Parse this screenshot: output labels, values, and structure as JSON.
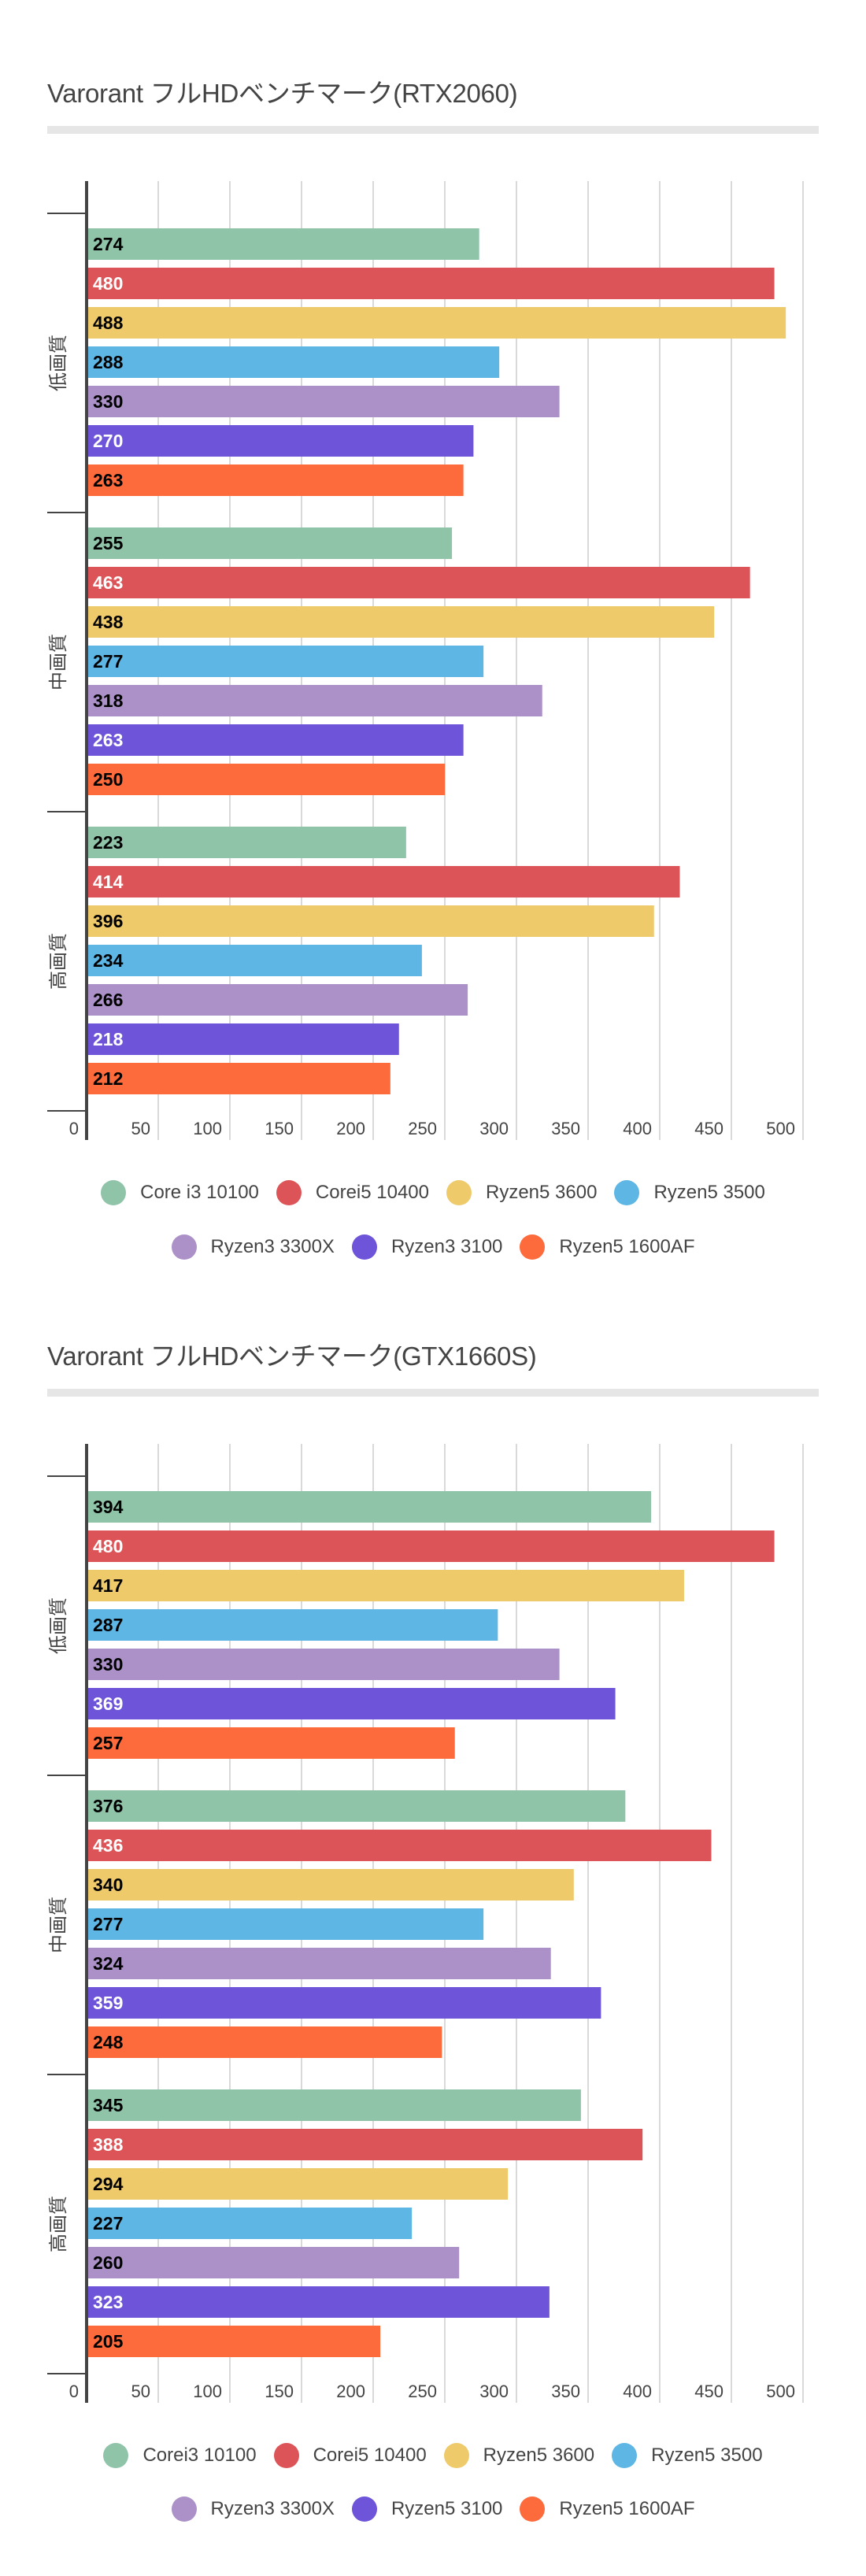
{
  "chart_data": [
    {
      "type": "bar",
      "orientation": "horizontal",
      "title": "Varorant フルHDベンチマーク(RTX2060)",
      "categories": [
        "低画質",
        "中画質",
        "高画質"
      ],
      "xlim": [
        0,
        500
      ],
      "xticks": [
        0,
        50,
        100,
        150,
        200,
        250,
        300,
        350,
        400,
        450,
        500
      ],
      "grid": true,
      "legend_position": "bottom",
      "data_labels": true,
      "series": [
        {
          "name": "Core i3 10100",
          "color": "#8fc4a9",
          "label_color": "#000000",
          "values": [
            274,
            255,
            223
          ]
        },
        {
          "name": "Corei5 10400",
          "color": "#dc5457",
          "label_color": "#ffffff",
          "values": [
            480,
            463,
            414
          ]
        },
        {
          "name": "Ryzen5 3600",
          "color": "#eeca6a",
          "label_color": "#000000",
          "values": [
            488,
            438,
            396
          ]
        },
        {
          "name": "Ryzen5 3500",
          "color": "#5eb6e4",
          "label_color": "#000000",
          "values": [
            288,
            277,
            234
          ]
        },
        {
          "name": "Ryzen3 3300X",
          "color": "#ab91c7",
          "label_color": "#000000",
          "values": [
            330,
            318,
            266
          ]
        },
        {
          "name": "Ryzen3 3100",
          "color": "#6d54d9",
          "label_color": "#ffffff",
          "values": [
            270,
            263,
            218
          ]
        },
        {
          "name": "Ryzen5 1600AF",
          "color": "#fd6a3b",
          "label_color": "#000000",
          "values": [
            263,
            250,
            212
          ]
        }
      ]
    },
    {
      "type": "bar",
      "orientation": "horizontal",
      "title": "Varorant フルHDベンチマーク(GTX1660S)",
      "categories": [
        "低画質",
        "中画質",
        "高画質"
      ],
      "xlim": [
        0,
        500
      ],
      "xticks": [
        0,
        50,
        100,
        150,
        200,
        250,
        300,
        350,
        400,
        450,
        500
      ],
      "grid": true,
      "legend_position": "bottom",
      "data_labels": true,
      "series": [
        {
          "name": "Corei3 10100",
          "color": "#8fc4a9",
          "label_color": "#000000",
          "values": [
            394,
            376,
            345
          ]
        },
        {
          "name": "Corei5 10400",
          "color": "#dc5457",
          "label_color": "#ffffff",
          "values": [
            480,
            436,
            388
          ]
        },
        {
          "name": "Ryzen5 3600",
          "color": "#eeca6a",
          "label_color": "#000000",
          "values": [
            417,
            340,
            294
          ]
        },
        {
          "name": "Ryzen5 3500",
          "color": "#5eb6e4",
          "label_color": "#000000",
          "values": [
            287,
            277,
            227
          ]
        },
        {
          "name": "Ryzen3 3300X",
          "color": "#ab91c7",
          "label_color": "#000000",
          "values": [
            330,
            324,
            260
          ]
        },
        {
          "name": "Ryzen5 3100",
          "color": "#6d54d9",
          "label_color": "#ffffff",
          "values": [
            369,
            359,
            323
          ]
        },
        {
          "name": "Ryzen5 1600AF",
          "color": "#fd6a3b",
          "label_color": "#000000",
          "values": [
            257,
            248,
            205
          ]
        }
      ]
    }
  ]
}
